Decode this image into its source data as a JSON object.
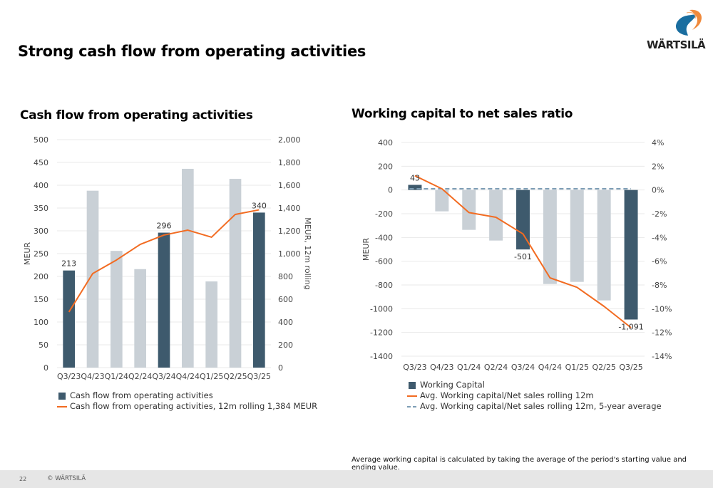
{
  "page": {
    "title": "Strong cash flow from operating activities",
    "footnote": "Average working capital is calculated by taking the average of the period's starting value and ending value.",
    "page_number": "22",
    "copyright": "© WÄRTSILÄ",
    "logo_text": "WÄRTSILÄ",
    "colors": {
      "bar_highlight": "#3e5a6d",
      "bar_muted": "#c9d0d6",
      "line": "#f26b21",
      "dashed": "#7d9db5",
      "grid": "#e9e9e9"
    }
  },
  "chart_data": [
    {
      "type": "bar",
      "title": "Cash flow from operating activities",
      "categories": [
        "Q3/23",
        "Q4/23",
        "Q1/24",
        "Q2/24",
        "Q3/24",
        "Q4/24",
        "Q1/25",
        "Q2/25",
        "Q3/25"
      ],
      "ylabel": "MEUR",
      "y2label": "MEUR, 12m rolling",
      "ylim": [
        0,
        500
      ],
      "y2lim": [
        0,
        2000
      ],
      "yticks": [
        "0",
        "50",
        "100",
        "150",
        "200",
        "250",
        "300",
        "350",
        "400",
        "450",
        "500"
      ],
      "y2ticks": [
        "0",
        "200",
        "400",
        "600",
        "800",
        "1,000",
        "1,200",
        "1,400",
        "1,600",
        "1,800",
        "2,000"
      ],
      "grid": true,
      "legend_position": "bottom-left",
      "series": [
        {
          "name": "Cash flow from operating activities",
          "kind": "bar",
          "axis": "left",
          "values": [
            213,
            388,
            256,
            216,
            296,
            436,
            189,
            414,
            340
          ],
          "highlight": [
            true,
            false,
            false,
            false,
            true,
            false,
            false,
            false,
            true
          ],
          "data_labels": [
            "213",
            "",
            "",
            "",
            "296",
            "",
            "",
            "",
            "340"
          ]
        },
        {
          "name": "Cash flow from operating activities, 12m rolling 1,384 MEUR",
          "kind": "line",
          "axis": "right",
          "values": [
            488,
            825,
            944,
            1081,
            1163,
            1206,
            1144,
            1344,
            1384
          ]
        }
      ]
    },
    {
      "type": "bar",
      "title": "Working capital to net sales ratio",
      "categories": [
        "Q3/23",
        "Q4/23",
        "Q1/24",
        "Q2/24",
        "Q3/24",
        "Q4/24",
        "Q1/25",
        "Q2/25",
        "Q3/25"
      ],
      "ylabel": "MEUR",
      "ylim": [
        -1400,
        400
      ],
      "y2lim": [
        -14,
        4
      ],
      "yticks": [
        "-1400",
        "-1200",
        "-1000",
        "-800",
        "-600",
        "-400",
        "-200",
        "0",
        "200",
        "400"
      ],
      "y2ticks": [
        "-14%",
        "-12%",
        "-10%",
        "-8%",
        "-6%",
        "-4%",
        "-2%",
        "0%",
        "2%",
        "4%"
      ],
      "grid": true,
      "legend_position": "bottom-left",
      "series": [
        {
          "name": "Working Capital",
          "kind": "bar",
          "axis": "left",
          "values": [
            43,
            -180,
            -336,
            -426,
            -501,
            -792,
            -774,
            -930,
            -1091
          ],
          "highlight": [
            true,
            false,
            false,
            false,
            true,
            false,
            false,
            false,
            true
          ],
          "data_labels": [
            "43",
            "",
            "",
            "",
            "-501",
            "",
            "",
            "",
            "-1,091"
          ]
        },
        {
          "name": "Avg. Working capital/Net sales rolling 12m",
          "kind": "line",
          "axis": "right",
          "unit": "%",
          "values": [
            1.2,
            0.1,
            -1.9,
            -2.3,
            -3.7,
            -7.4,
            -8.2,
            -9.8,
            -11.6
          ]
        },
        {
          "name": "Avg. Working capital/Net sales rolling 12m, 5-year average",
          "kind": "dashed-line",
          "axis": "right",
          "unit": "%",
          "values": [
            0.1,
            0.1,
            0.1,
            0.1,
            0.1,
            0.1,
            0.1,
            0.1,
            0.1
          ]
        }
      ]
    }
  ]
}
